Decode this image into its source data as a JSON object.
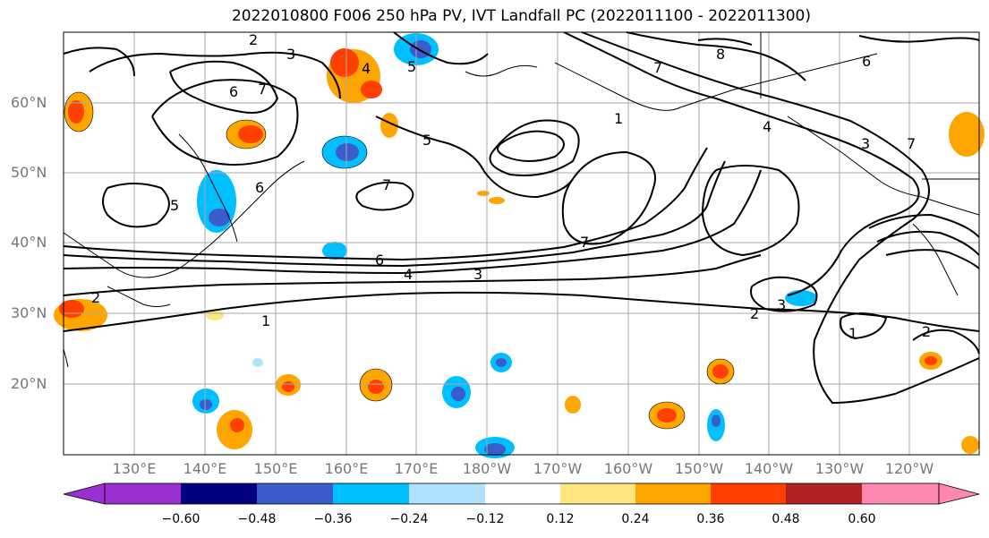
{
  "title": "2022010800 F006 250 hPa PV, IVT Landfall PC (2022011100 - 2022011300)",
  "lat_labels": [
    "60°N",
    "50°N",
    "40°N",
    "30°N",
    "20°N"
  ],
  "lon_labels": [
    "130°E",
    "140°E",
    "150°E",
    "160°E",
    "170°E",
    "180°W",
    "170°W",
    "160°W",
    "150°W",
    "140°W",
    "130°W",
    "120°W"
  ],
  "colorbar": {
    "tick_labels": [
      "−0.60",
      "−0.48",
      "−0.36",
      "−0.24",
      "−0.12",
      "0.12",
      "0.24",
      "0.36",
      "0.48",
      "0.60"
    ],
    "colors": [
      "#9b30d0",
      "#000080",
      "#3a5ccc",
      "#00bfff",
      "#b0e2ff",
      "#ffffff",
      "#ffe680",
      "#ffa500",
      "#ff4000",
      "#b22222",
      "#ff88b0"
    ]
  },
  "contour_labels": [
    "2",
    "3",
    "4",
    "5",
    "6",
    "7",
    "8",
    "1",
    "4",
    "5",
    "7",
    "6",
    "7",
    "7",
    "6",
    "4",
    "3",
    "2",
    "3",
    "1",
    "1",
    "2",
    "2",
    "6",
    "7",
    "5",
    "3"
  ]
}
